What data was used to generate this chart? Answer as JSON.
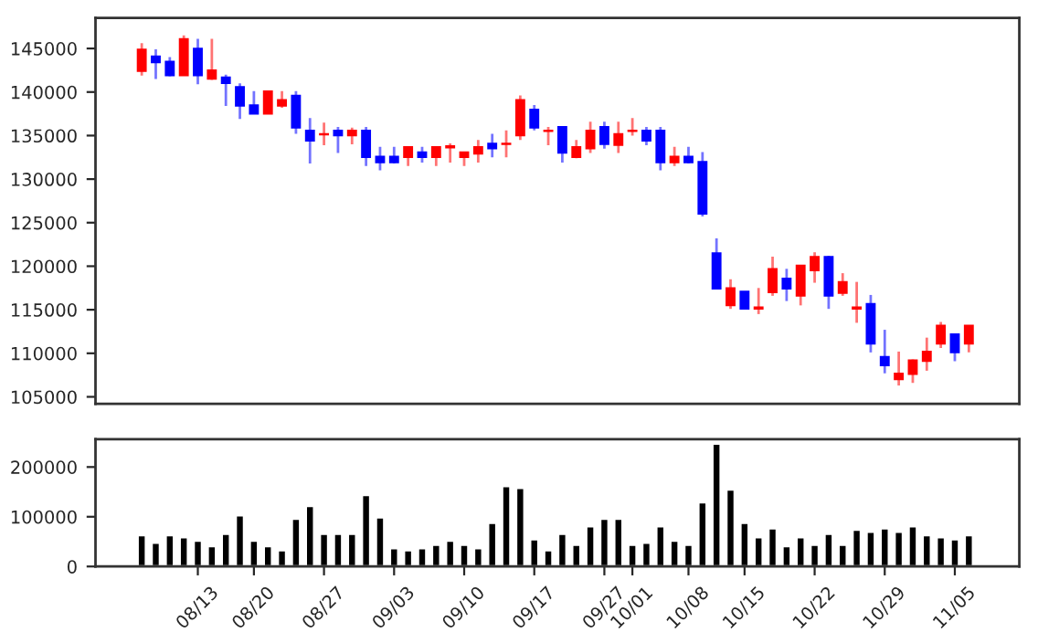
{
  "chart_data": [
    {
      "type": "candlestick",
      "categories": [
        null,
        null,
        null,
        null,
        null,
        null,
        null,
        null,
        null,
        null,
        null,
        null,
        null,
        null,
        null,
        null,
        null,
        null,
        null,
        null,
        null,
        null,
        null,
        null,
        null,
        null,
        null,
        null,
        null,
        null,
        null,
        null,
        null,
        null,
        null,
        null,
        null,
        null,
        null,
        null,
        null,
        null,
        null,
        null,
        null,
        null,
        null,
        null,
        null,
        null,
        null,
        null,
        null,
        null,
        null,
        null,
        null,
        null,
        null,
        null
      ],
      "ohlc": [
        [
          142400,
          145600,
          141900,
          144900
        ],
        [
          144100,
          144900,
          141500,
          143400
        ],
        [
          143500,
          144000,
          141800,
          141900
        ],
        [
          141900,
          146500,
          141900,
          146100
        ],
        [
          145000,
          146100,
          140900,
          141900
        ],
        [
          141500,
          146100,
          141400,
          142500
        ],
        [
          141700,
          142000,
          138400,
          141000
        ],
        [
          140600,
          141000,
          136900,
          138400
        ],
        [
          138500,
          140100,
          137500,
          137500
        ],
        [
          137500,
          140100,
          137500,
          140100
        ],
        [
          138400,
          140100,
          138200,
          139100
        ],
        [
          139600,
          140100,
          135200,
          135900
        ],
        [
          135600,
          137000,
          131800,
          134400
        ],
        [
          135100,
          136500,
          133900,
          135200
        ],
        [
          135600,
          136000,
          133000,
          135000
        ],
        [
          135000,
          135900,
          134000,
          135600
        ],
        [
          135600,
          136000,
          131500,
          132500
        ],
        [
          132600,
          133700,
          131000,
          131900
        ],
        [
          132600,
          133700,
          131800,
          131900
        ],
        [
          132500,
          133800,
          131500,
          133700
        ],
        [
          133100,
          133700,
          131900,
          132500
        ],
        [
          132500,
          133700,
          131500,
          133700
        ],
        [
          133600,
          134100,
          131900,
          133800
        ],
        [
          132500,
          133100,
          131500,
          133100
        ],
        [
          132900,
          134500,
          131900,
          133700
        ],
        [
          134100,
          135200,
          132500,
          133500
        ],
        [
          134000,
          135600,
          132500,
          134100
        ],
        [
          135000,
          139600,
          134500,
          139100
        ],
        [
          138000,
          138500,
          135600,
          135900
        ],
        [
          135500,
          136000,
          133900,
          135600
        ],
        [
          136000,
          136000,
          131900,
          133000
        ],
        [
          132500,
          134500,
          132400,
          133700
        ],
        [
          133500,
          136600,
          133000,
          135600
        ],
        [
          136000,
          136600,
          133500,
          134000
        ],
        [
          133900,
          136600,
          133000,
          135200
        ],
        [
          135500,
          137000,
          135000,
          135600
        ],
        [
          135600,
          136000,
          133900,
          134400
        ],
        [
          135600,
          136000,
          131000,
          131900
        ],
        [
          131900,
          133700,
          131500,
          132600
        ],
        [
          132600,
          133700,
          131800,
          131900
        ],
        [
          132000,
          133100,
          125700,
          126000
        ],
        [
          121500,
          123200,
          117400,
          117400
        ],
        [
          115500,
          118500,
          115100,
          117500
        ],
        [
          117100,
          117100,
          115100,
          115100
        ],
        [
          115100,
          117500,
          114500,
          115300
        ],
        [
          117000,
          121100,
          116600,
          119700
        ],
        [
          118600,
          119700,
          116000,
          117400
        ],
        [
          116600,
          120100,
          115500,
          120100
        ],
        [
          119500,
          121600,
          118100,
          121100
        ],
        [
          121100,
          121200,
          115100,
          116600
        ],
        [
          116900,
          119200,
          116600,
          118200
        ],
        [
          115100,
          118200,
          113500,
          115300
        ],
        [
          115700,
          116700,
          110100,
          111100
        ],
        [
          109600,
          112700,
          107700,
          108600
        ],
        [
          107000,
          110200,
          106300,
          107700
        ],
        [
          107600,
          109300,
          106600,
          109200
        ],
        [
          109100,
          111800,
          108000,
          110200
        ],
        [
          111100,
          113600,
          110600,
          113200
        ],
        [
          112200,
          112300,
          109100,
          110100
        ],
        [
          111100,
          113200,
          110100,
          113200
        ]
      ],
      "colors": [
        "#ff0000",
        "#0000ff",
        "#0000ff",
        "#ff0000",
        "#0000ff",
        "#ff0000",
        "#0000ff",
        "#0000ff",
        "#0000ff",
        "#ff0000",
        "#ff0000",
        "#0000ff",
        "#0000ff",
        "#ff0000",
        "#0000ff",
        "#ff0000",
        "#0000ff",
        "#0000ff",
        "#0000ff",
        "#ff0000",
        "#0000ff",
        "#ff0000",
        "#ff0000",
        "#ff0000",
        "#ff0000",
        "#0000ff",
        "#ff0000",
        "#ff0000",
        "#0000ff",
        "#ff0000",
        "#0000ff",
        "#ff0000",
        "#ff0000",
        "#0000ff",
        "#ff0000",
        "#ff0000",
        "#0000ff",
        "#0000ff",
        "#ff0000",
        "#0000ff",
        "#0000ff",
        "#0000ff",
        "#ff0000",
        "#0000ff",
        "#ff0000",
        "#ff0000",
        "#0000ff",
        "#ff0000",
        "#ff0000",
        "#0000ff",
        "#ff0000",
        "#ff0000",
        "#0000ff",
        "#0000ff",
        "#ff0000",
        "#ff0000",
        "#ff0000",
        "#ff0000",
        "#0000ff",
        "#ff0000"
      ],
      "ylim": [
        104200,
        148500
      ],
      "yticks": [
        105000,
        110000,
        115000,
        120000,
        125000,
        130000,
        135000,
        140000,
        145000
      ],
      "tick_labels": "y"
    },
    {
      "type": "bar",
      "categories": [
        null,
        null,
        null,
        null,
        "08/13",
        null,
        null,
        null,
        "08/20",
        null,
        null,
        null,
        null,
        "08/27",
        null,
        null,
        null,
        null,
        "09/03",
        null,
        null,
        null,
        null,
        "09/10",
        null,
        null,
        null,
        null,
        "09/17",
        null,
        null,
        null,
        null,
        "09/27",
        null,
        "10/01",
        null,
        null,
        null,
        "10/08",
        null,
        null,
        null,
        "10/15",
        null,
        null,
        null,
        null,
        "10/22",
        null,
        null,
        null,
        null,
        "10/29",
        null,
        null,
        null,
        null,
        "11/05",
        null
      ],
      "values": [
        63000,
        48000,
        63000,
        59000,
        52000,
        41000,
        66000,
        103000,
        52000,
        41000,
        33000,
        96000,
        122000,
        66000,
        66000,
        66000,
        144000,
        99000,
        37000,
        33000,
        37000,
        44000,
        52000,
        44000,
        37000,
        88000,
        162000,
        158000,
        55000,
        33000,
        66000,
        44000,
        81000,
        96000,
        96000,
        44000,
        48000,
        81000,
        52000,
        44000,
        129000,
        247000,
        155000,
        88000,
        59000,
        77000,
        41000,
        59000,
        44000,
        66000,
        44000,
        74000,
        70000,
        77000,
        70000,
        81000,
        63000,
        59000,
        55000,
        63000
      ],
      "color": "#000000",
      "ylim": [
        0,
        256000
      ],
      "yticks": [
        0,
        100000,
        200000
      ]
    }
  ]
}
